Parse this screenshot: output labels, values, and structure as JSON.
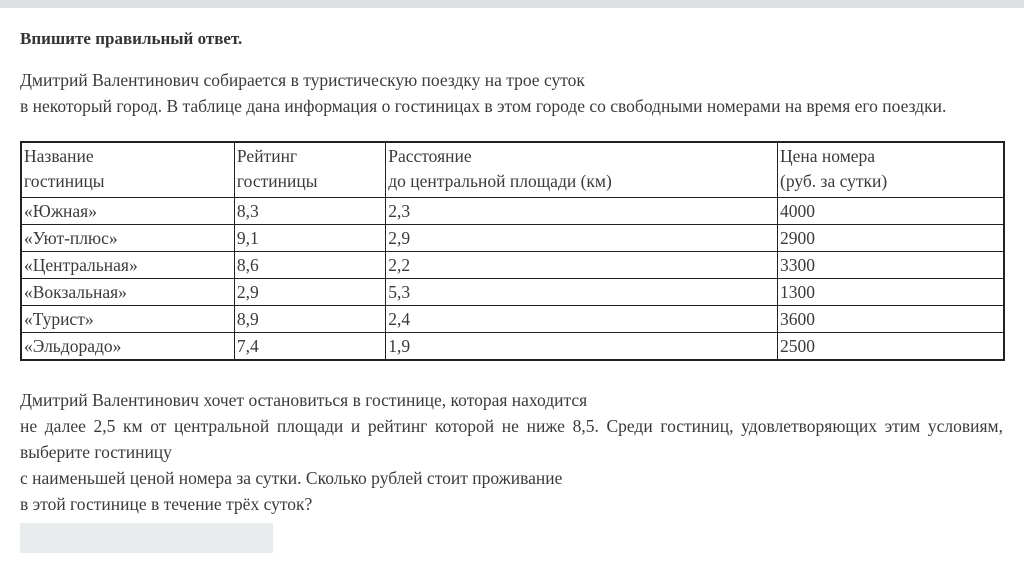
{
  "page": {
    "title": "Впишите правильный ответ.",
    "intro": {
      "line1": "Дмитрий Валентинович собирается в туристическую поездку на трое суток",
      "line2": "в некоторый город. В таблице дана информация о гостиницах в этом городе со свободными номерами на время его поездки."
    },
    "question": {
      "line1": "Дмитрий Валентинович хочет остановиться в гостинице, которая находится",
      "line2": "не далее 2,5 км от центральной площади и рейтинг которой не ниже 8,5. Среди гостиниц, удовлетворяющих этим условиям,",
      "line3": "выберите гостиницу",
      "line4": "с наименьшей ценой номера за сутки. Сколько рублей стоит проживание",
      "line5": "в этой гостинице в течение трёх суток?"
    }
  },
  "table": {
    "headers": {
      "name": {
        "line1": "Название",
        "line2": "гостиницы"
      },
      "rating": {
        "line1": "Рейтинг",
        "line2": "гостиницы"
      },
      "distance": {
        "line1": "Расстояние",
        "line2": "до центральной площади (км)"
      },
      "price": {
        "line1": "Цена номера",
        "line2": "(руб. за сутки)"
      }
    },
    "rows": [
      [
        "«Южная»",
        "8,3",
        "2,3",
        "4000"
      ],
      [
        "«Уют-плюс»",
        "9,1",
        "2,9",
        "2900"
      ],
      [
        "«Центральная»",
        "8,6",
        "2,2",
        "3300"
      ],
      [
        "«Вокзальная»",
        "2,9",
        "5,3",
        "1300"
      ],
      [
        "«Турист»",
        "8,9",
        "2,4",
        "3600"
      ],
      [
        "«Эльдорадо»",
        "7,4",
        "1,9",
        "2500"
      ]
    ]
  },
  "answer_input": {
    "value": "",
    "placeholder": ""
  },
  "colors": {
    "top_bar": "#dde1e2",
    "input_background": "#e9eced",
    "text": "#3a3a3a",
    "table_border": "#222222"
  }
}
